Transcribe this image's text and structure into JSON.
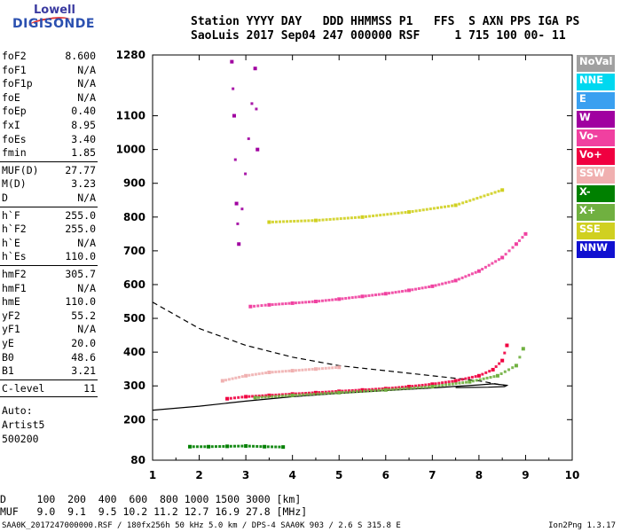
{
  "logo": {
    "line1": "Lowell",
    "line2": "DIGISONDE"
  },
  "header": {
    "line1": "Station YYYY DAY   DDD HHMMSS P1   FFS  S AXN PPS IGA PS",
    "line2": "SaoLuis 2017 Sep04 247 000000 RSF     1 715 100 00- 11"
  },
  "params": [
    {
      "k": "foF2",
      "v": "8.600"
    },
    {
      "k": "foF1",
      "v": "N/A"
    },
    {
      "k": "foF1p",
      "v": "N/A"
    },
    {
      "k": "foE",
      "v": "N/A"
    },
    {
      "k": "foEp",
      "v": "0.40"
    },
    {
      "k": "fxI",
      "v": "8.95"
    },
    {
      "k": "foEs",
      "v": "3.40"
    },
    {
      "k": "fmin",
      "v": "1.85"
    },
    {
      "k": "MUF(D)",
      "v": "27.77"
    },
    {
      "k": "M(D)",
      "v": "3.23"
    },
    {
      "k": "D",
      "v": "N/A"
    },
    {
      "k": "h`F",
      "v": "255.0"
    },
    {
      "k": "h`F2",
      "v": "255.0"
    },
    {
      "k": "h`E",
      "v": "N/A"
    },
    {
      "k": "h`Es",
      "v": "110.0"
    },
    {
      "k": "hmF2",
      "v": "305.7"
    },
    {
      "k": "hmF1",
      "v": "N/A"
    },
    {
      "k": "hmE",
      "v": "110.0"
    },
    {
      "k": "yF2",
      "v": "55.2"
    },
    {
      "k": "yF1",
      "v": "N/A"
    },
    {
      "k": "yE",
      "v": "20.0"
    },
    {
      "k": "B0",
      "v": "48.6"
    },
    {
      "k": "B1",
      "v": "3.21"
    },
    {
      "k": "C-level",
      "v": "11"
    }
  ],
  "auto": {
    "l1": "Auto:",
    "l2": "Artist5",
    "l3": "500200"
  },
  "footer": {
    "line1": "D     100  200  400  600  800 1000 1500 3000 [km]",
    "line2": "MUF   9.0  9.1  9.5 10.2 11.2 12.7 16.9 27.8 [MHz]"
  },
  "fileline": "SAA0K_2017247000000.RSF / 180fx256h 50 kHz 5.0 km / DPS-4 SAA0K 903 / 2.6 S 315.8 E",
  "version": "Ion2Png 1.3.17",
  "legend": [
    {
      "name": "NoVal",
      "color": "#a0a0a0"
    },
    {
      "name": "NNE",
      "color": "#00d8f0"
    },
    {
      "name": "E",
      "color": "#3aa0f0"
    },
    {
      "name": "W",
      "color": "#a000a0"
    },
    {
      "name": "Vo-",
      "color": "#f040a0"
    },
    {
      "name": "Vo+",
      "color": "#f00040"
    },
    {
      "name": "SSW",
      "color": "#f0b0b0"
    },
    {
      "name": "X-",
      "color": "#008000"
    },
    {
      "name": "X+",
      "color": "#70b040"
    },
    {
      "name": "SSE",
      "color": "#d0d020"
    },
    {
      "name": "NNW",
      "color": "#1010d0"
    }
  ],
  "chart_data": {
    "type": "scatter",
    "title": "",
    "xlabel": "",
    "ylabel": "",
    "xlim": [
      1,
      10
    ],
    "ylim": [
      80,
      1280
    ],
    "x_ticks": [
      1,
      2,
      3,
      4,
      5,
      6,
      7,
      8,
      9,
      10
    ],
    "x_tick_labels": [
      "1",
      "2",
      "3",
      "4",
      "5",
      "6",
      "7",
      "8",
      "9",
      "10"
    ],
    "y_ticks": [
      80,
      200,
      300,
      400,
      500,
      600,
      700,
      800,
      900,
      1000,
      1100,
      1280
    ],
    "y_tick_labels": [
      "80",
      "200",
      "300",
      "400",
      "500",
      "600",
      "700",
      "800",
      "900",
      "1000",
      "1100",
      "1280"
    ],
    "grid": false,
    "series": [
      {
        "name": "Vo+",
        "color": "#f00040",
        "x": [
          2.6,
          3.0,
          3.5,
          4.0,
          4.5,
          5.0,
          5.5,
          6.0,
          6.5,
          7.0,
          7.5,
          8.0,
          8.3,
          8.5,
          8.6
        ],
        "y": [
          262,
          268,
          272,
          276,
          280,
          284,
          288,
          292,
          298,
          305,
          315,
          330,
          348,
          375,
          420
        ]
      },
      {
        "name": "X+",
        "color": "#70b040",
        "x": [
          3.2,
          4.0,
          5.0,
          6.0,
          7.0,
          7.8,
          8.4,
          8.8,
          8.95
        ],
        "y": [
          265,
          272,
          280,
          288,
          298,
          312,
          330,
          360,
          410
        ]
      },
      {
        "name": "Vo-",
        "color": "#f040a0",
        "x": [
          3.1,
          3.5,
          4.0,
          4.5,
          5.0,
          5.5,
          6.0,
          6.5,
          7.0,
          7.5,
          8.0,
          8.5,
          8.8,
          9.0
        ],
        "y": [
          535,
          540,
          545,
          550,
          557,
          565,
          573,
          583,
          595,
          612,
          640,
          680,
          720,
          750
        ]
      },
      {
        "name": "SSE",
        "color": "#d0d020",
        "x": [
          3.5,
          4.5,
          5.5,
          6.5,
          7.5,
          8.5
        ],
        "y": [
          785,
          790,
          800,
          815,
          835,
          880
        ]
      },
      {
        "name": "SSW",
        "color": "#f0b0b0",
        "x": [
          2.5,
          3.0,
          3.5,
          4.0,
          4.5,
          5.0
        ],
        "y": [
          315,
          330,
          340,
          345,
          350,
          355
        ]
      },
      {
        "name": "W",
        "color": "#a000a0",
        "x": [
          2.7,
          2.75,
          2.8,
          2.85,
          3.2,
          3.25
        ],
        "y": [
          1260,
          1100,
          840,
          720,
          1240,
          1000
        ]
      },
      {
        "name": "X-",
        "color": "#008000",
        "x": [
          1.8,
          2.2,
          2.6,
          3.0,
          3.4,
          3.8
        ],
        "y": [
          120,
          120,
          121,
          122,
          120,
          119
        ]
      }
    ],
    "profile_solid": {
      "x": [
        1,
        2,
        3,
        4,
        5,
        6,
        7,
        8,
        8.3,
        8.6,
        8.55,
        8.2,
        7.5
      ],
      "y": [
        228,
        240,
        255,
        268,
        278,
        286,
        294,
        303,
        306,
        302,
        298,
        296,
        295
      ]
    },
    "profile_dashed": {
      "x": [
        1,
        2,
        3,
        4,
        5,
        6,
        7,
        8,
        8.6
      ],
      "y": [
        548,
        470,
        420,
        385,
        360,
        345,
        330,
        315,
        300
      ]
    }
  }
}
